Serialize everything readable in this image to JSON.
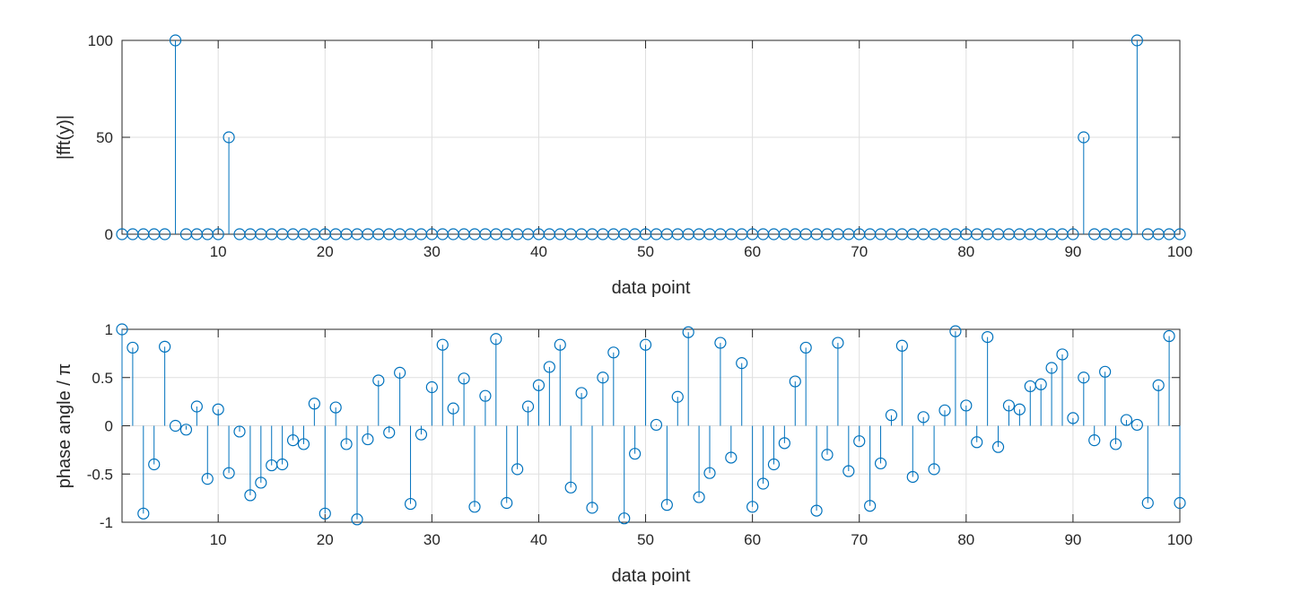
{
  "chart_data": [
    {
      "type": "stem",
      "xlabel": "data point",
      "ylabel": "|fft(y)|",
      "xlim": [
        1,
        100
      ],
      "ylim": [
        0,
        100
      ],
      "xticks": [
        10,
        20,
        30,
        40,
        50,
        60,
        70,
        80,
        90,
        100
      ],
      "yticks": [
        0,
        50,
        100
      ],
      "grid": true,
      "color": "#0072BD",
      "x": [
        1,
        2,
        3,
        4,
        5,
        6,
        7,
        8,
        9,
        10,
        11,
        12,
        13,
        14,
        15,
        16,
        17,
        18,
        19,
        20,
        21,
        22,
        23,
        24,
        25,
        26,
        27,
        28,
        29,
        30,
        31,
        32,
        33,
        34,
        35,
        36,
        37,
        38,
        39,
        40,
        41,
        42,
        43,
        44,
        45,
        46,
        47,
        48,
        49,
        50,
        51,
        52,
        53,
        54,
        55,
        56,
        57,
        58,
        59,
        60,
        61,
        62,
        63,
        64,
        65,
        66,
        67,
        68,
        69,
        70,
        71,
        72,
        73,
        74,
        75,
        76,
        77,
        78,
        79,
        80,
        81,
        82,
        83,
        84,
        85,
        86,
        87,
        88,
        89,
        90,
        91,
        92,
        93,
        94,
        95,
        96,
        97,
        98,
        99,
        100
      ],
      "values": [
        0,
        0,
        0,
        0,
        0,
        100,
        0,
        0,
        0,
        0,
        50,
        0,
        0,
        0,
        0,
        0,
        0,
        0,
        0,
        0,
        0,
        0,
        0,
        0,
        0,
        0,
        0,
        0,
        0,
        0,
        0,
        0,
        0,
        0,
        0,
        0,
        0,
        0,
        0,
        0,
        0,
        0,
        0,
        0,
        0,
        0,
        0,
        0,
        0,
        0,
        0,
        0,
        0,
        0,
        0,
        0,
        0,
        0,
        0,
        0,
        0,
        0,
        0,
        0,
        0,
        0,
        0,
        0,
        0,
        0,
        0,
        0,
        0,
        0,
        0,
        0,
        0,
        0,
        0,
        0,
        0,
        0,
        0,
        0,
        0,
        0,
        0,
        0,
        0,
        0,
        50,
        0,
        0,
        0,
        0,
        100,
        0,
        0,
        0,
        0
      ]
    },
    {
      "type": "stem",
      "xlabel": "data point",
      "ylabel": "phase angle / π",
      "xlim": [
        1,
        100
      ],
      "ylim": [
        -1,
        1
      ],
      "xticks": [
        10,
        20,
        30,
        40,
        50,
        60,
        70,
        80,
        90,
        100
      ],
      "yticks": [
        -1,
        -0.5,
        0,
        0.5,
        1
      ],
      "ytick_labels": [
        "-1",
        "-0.5",
        "0",
        "0.5",
        "1"
      ],
      "grid": true,
      "color": "#0072BD",
      "x": [
        1,
        2,
        3,
        4,
        5,
        6,
        7,
        8,
        9,
        10,
        11,
        12,
        13,
        14,
        15,
        16,
        17,
        18,
        19,
        20,
        21,
        22,
        23,
        24,
        25,
        26,
        27,
        28,
        29,
        30,
        31,
        32,
        33,
        34,
        35,
        36,
        37,
        38,
        39,
        40,
        41,
        42,
        43,
        44,
        45,
        46,
        47,
        48,
        49,
        50,
        51,
        52,
        53,
        54,
        55,
        56,
        57,
        58,
        59,
        60,
        61,
        62,
        63,
        64,
        65,
        66,
        67,
        68,
        69,
        70,
        71,
        72,
        73,
        74,
        75,
        76,
        77,
        78,
        79,
        80,
        81,
        82,
        83,
        84,
        85,
        86,
        87,
        88,
        89,
        90,
        91,
        92,
        93,
        94,
        95,
        96,
        97,
        98,
        99,
        100
      ],
      "values": [
        1,
        0.81,
        -0.91,
        -0.4,
        0.82,
        0,
        -0.04,
        0.2,
        -0.55,
        0.17,
        -0.49,
        -0.06,
        -0.72,
        -0.59,
        -0.41,
        -0.4,
        -0.15,
        -0.19,
        0.23,
        -0.91,
        0.19,
        -0.19,
        -0.97,
        -0.14,
        0.47,
        -0.07,
        0.55,
        -0.81,
        -0.09,
        0.4,
        0.84,
        0.18,
        0.49,
        -0.84,
        0.31,
        0.9,
        -0.8,
        -0.45,
        0.2,
        0.42,
        0.61,
        0.84,
        -0.64,
        0.34,
        -0.85,
        0.5,
        0.76,
        -0.96,
        -0.29,
        0.84,
        0.01,
        -0.82,
        0.3,
        0.97,
        -0.74,
        -0.49,
        0.86,
        -0.33,
        0.65,
        -0.84,
        -0.6,
        -0.4,
        -0.18,
        0.46,
        0.81,
        -0.88,
        -0.3,
        0.86,
        -0.47,
        -0.16,
        -0.83,
        -0.39,
        0.11,
        0.83,
        -0.53,
        0.09,
        -0.45,
        0.16,
        0.98,
        0.21,
        -0.17,
        0.92,
        -0.22,
        0.21,
        0.17,
        0.41,
        0.43,
        0.6,
        0.74,
        0.08,
        0.5,
        -0.15,
        0.56,
        -0.19,
        0.06,
        0.01,
        -0.8,
        0.42,
        0.93,
        -0.8
      ]
    }
  ]
}
